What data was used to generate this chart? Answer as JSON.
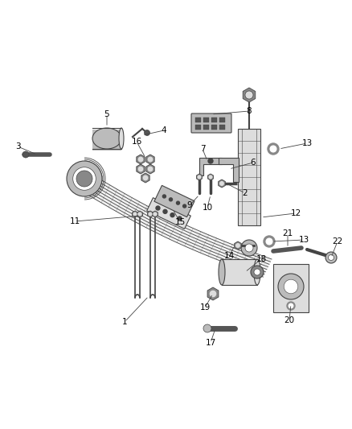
{
  "bg_color": "#ffffff",
  "fig_width": 4.38,
  "fig_height": 5.33,
  "dpi": 100,
  "line_color": "#444444",
  "dark_gray": "#555555",
  "mid_gray": "#888888",
  "light_gray": "#bbbbbb",
  "very_light_gray": "#dddddd"
}
